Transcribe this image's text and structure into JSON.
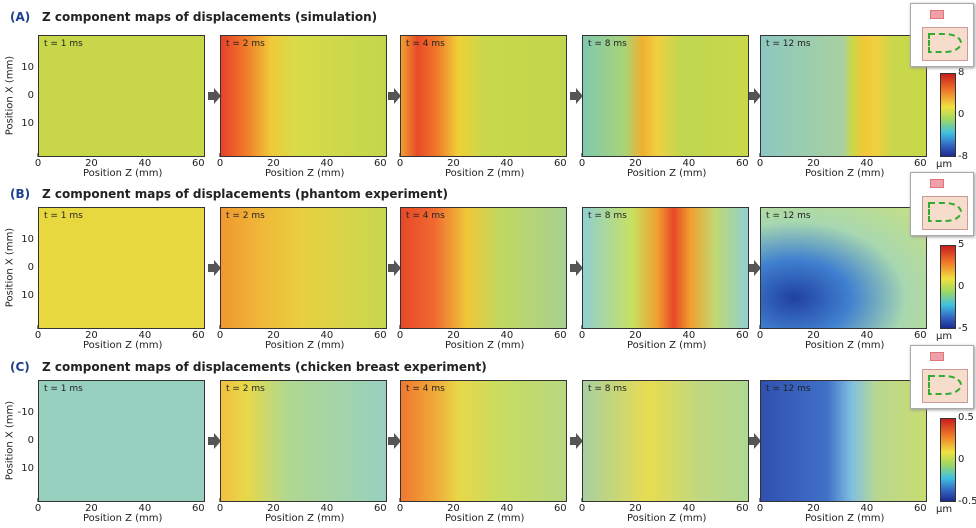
{
  "rows": [
    {
      "label": "(A)",
      "title": "Z component maps of displacements (simulation)",
      "yticks": [
        "10",
        "0",
        "10"
      ],
      "panels": [
        {
          "time": "t = 1 ms"
        },
        {
          "time": "t = 2 ms"
        },
        {
          "time": "t = 4 ms"
        },
        {
          "time": "t = 8 ms"
        },
        {
          "time": "t = 12 ms"
        }
      ],
      "colorbar": {
        "ticks": [
          "8",
          "0",
          "-8"
        ],
        "unit": "μm"
      }
    },
    {
      "label": "(B)",
      "title": "Z component maps of displacements (phantom experiment)",
      "yticks": [
        "10",
        "0",
        "10"
      ],
      "panels": [
        {
          "time": "t = 1 ms"
        },
        {
          "time": "t = 2 ms"
        },
        {
          "time": "t = 4 ms"
        },
        {
          "time": "t = 8 ms"
        },
        {
          "time": "t = 12 ms"
        }
      ],
      "colorbar": {
        "ticks": [
          "5",
          "0",
          "-5"
        ],
        "unit": "μm"
      }
    },
    {
      "label": "(C)",
      "title": "Z component maps of displacements (chicken breast experiment)",
      "yticks": [
        "-10",
        "0",
        "10"
      ],
      "panels": [
        {
          "time": "t = 1 ms"
        },
        {
          "time": "t = 2 ms"
        },
        {
          "time": "t = 4 ms"
        },
        {
          "time": "t = 8 ms"
        },
        {
          "time": "t = 12 ms"
        }
      ],
      "colorbar": {
        "ticks": [
          "0.5",
          "0",
          "-0.5"
        ],
        "unit": "μm"
      }
    }
  ],
  "x_axis": {
    "label": "Position Z (mm)",
    "ticks": [
      "0",
      "20",
      "40",
      "60"
    ]
  },
  "y_axis": {
    "label": "Position X (mm)"
  }
}
